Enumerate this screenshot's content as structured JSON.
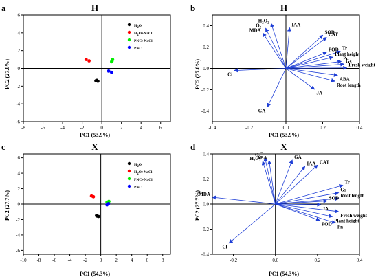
{
  "panels": [
    {
      "letter": "a",
      "title": "H",
      "xlabel": "PC1 (53.9%)",
      "ylabel": "PC2 (27.0%)"
    },
    {
      "letter": "b",
      "title": "H",
      "xlabel": "PC1 (53.9%)",
      "ylabel": "PC2 (27.0%)"
    },
    {
      "letter": "c",
      "title": "X",
      "xlabel": "PC1 (54.3%)",
      "ylabel": "PC2 (27.7%)"
    },
    {
      "letter": "d",
      "title": "X",
      "xlabel": "PC1 (54.3%)",
      "ylabel": "PC2 (27.7%)"
    }
  ],
  "chart_data": [
    {
      "type": "scatter",
      "panel": "a",
      "title": "H",
      "xlabel": "PC1 (53.9%)",
      "ylabel": "PC2 (27.0%)",
      "xlim": [
        -8,
        7
      ],
      "ylim": [
        -6,
        6
      ],
      "xticks": [
        -8,
        -6,
        -4,
        -2,
        0,
        2,
        4,
        6
      ],
      "yticks": [
        -6,
        -4,
        -2,
        0,
        2,
        4,
        6
      ],
      "grid": false,
      "legend_position": "top-right",
      "series": [
        {
          "name": "H2O",
          "color": "#000000",
          "points": [
            [
              -0.6,
              -1.4
            ],
            [
              -0.4,
              -1.45
            ],
            [
              -0.5,
              -1.35
            ]
          ]
        },
        {
          "name": "H2O+NaCl",
          "color": "#ff0000",
          "points": [
            [
              -1.6,
              1.0
            ],
            [
              -1.3,
              0.85
            ]
          ]
        },
        {
          "name": "PNC+NaCl",
          "color": "#00ee00",
          "points": [
            [
              1.05,
              0.85
            ],
            [
              1.1,
              1.0
            ],
            [
              1.0,
              0.75
            ]
          ]
        },
        {
          "name": "PNC",
          "color": "#0000ff",
          "points": [
            [
              0.7,
              -0.3
            ],
            [
              1.0,
              -0.45
            ]
          ]
        }
      ]
    },
    {
      "type": "biplot",
      "panel": "b",
      "title": "H",
      "xlabel": "PC1 (53.9%)",
      "ylabel": "PC2 (27.0%)",
      "xlim": [
        -0.4,
        0.4
      ],
      "ylim": [
        -0.5,
        0.5
      ],
      "xticks": [
        -0.4,
        -0.2,
        0.0,
        0.2,
        0.4
      ],
      "yticks": [
        -0.4,
        -0.2,
        0.0,
        0.2,
        0.4
      ],
      "grid": false,
      "vectors": [
        {
          "name": "Ci",
          "x": -0.28,
          "y": -0.02
        },
        {
          "name": "GA",
          "x": -0.1,
          "y": -0.36
        },
        {
          "name": "MDA",
          "x": -0.125,
          "y": 0.33
        },
        {
          "name": "O2⁻",
          "x": -0.11,
          "y": 0.375
        },
        {
          "name": "H2O2",
          "x": -0.08,
          "y": 0.42
        },
        {
          "name": "IAA",
          "x": 0.02,
          "y": 0.38
        },
        {
          "name": "SOD",
          "x": 0.2,
          "y": 0.31
        },
        {
          "name": "CAT",
          "x": 0.22,
          "y": 0.29
        },
        {
          "name": "POD",
          "x": 0.22,
          "y": 0.15
        },
        {
          "name": "Tr",
          "x": 0.295,
          "y": 0.16
        },
        {
          "name": "Plant height",
          "x": 0.255,
          "y": 0.105
        },
        {
          "name": "Pn",
          "x": 0.3,
          "y": 0.065
        },
        {
          "name": "Gs",
          "x": 0.315,
          "y": 0.04
        },
        {
          "name": "Fresh weight",
          "x": 0.33,
          "y": 0.005
        },
        {
          "name": "ABA",
          "x": 0.28,
          "y": -0.065
        },
        {
          "name": "Root length",
          "x": 0.265,
          "y": -0.12
        },
        {
          "name": "JA",
          "x": 0.155,
          "y": -0.195
        }
      ]
    },
    {
      "type": "scatter",
      "panel": "c",
      "title": "X",
      "xlabel": "PC1 (54.3%)",
      "ylabel": "PC2 (27.7%)",
      "xlim": [
        -10,
        9
      ],
      "ylim": [
        -6.5,
        6.5
      ],
      "xticks": [
        -10,
        -8,
        -6,
        -4,
        -2,
        0,
        2,
        4,
        6,
        8
      ],
      "yticks": [
        -6,
        -4,
        -2,
        0,
        2,
        4,
        6
      ],
      "grid": false,
      "legend_position": "top-right",
      "series": [
        {
          "name": "H2O",
          "color": "#000000",
          "points": [
            [
              -0.55,
              -1.5
            ],
            [
              -0.3,
              -1.6
            ],
            [
              -0.45,
              -1.55
            ]
          ]
        },
        {
          "name": "H2O+NaCl",
          "color": "#ff0000",
          "points": [
            [
              -1.2,
              1.05
            ],
            [
              -0.95,
              0.95
            ]
          ]
        },
        {
          "name": "PNC+NaCl",
          "color": "#00ee00",
          "points": [
            [
              0.8,
              0.25
            ],
            [
              1.05,
              0.35
            ],
            [
              0.95,
              0.15
            ]
          ]
        },
        {
          "name": "PNC",
          "color": "#0000ff",
          "points": [
            [
              0.8,
              -0.1
            ],
            [
              1.0,
              0.05
            ]
          ]
        }
      ]
    },
    {
      "type": "biplot",
      "panel": "d",
      "title": "X",
      "xlabel": "PC1 (54.3%)",
      "ylabel": "PC2 (27.7%)",
      "xlim": [
        -0.3,
        0.4
      ],
      "ylim": [
        -0.4,
        0.4
      ],
      "xticks": [
        -0.2,
        0.0,
        0.2,
        0.4
      ],
      "yticks": [
        -0.4,
        -0.2,
        0.0,
        0.2,
        0.4
      ],
      "grid": false,
      "vectors": [
        {
          "name": "Cl",
          "x": -0.22,
          "y": -0.31
        },
        {
          "name": "MDA",
          "x": -0.3,
          "y": 0.055
        },
        {
          "name": "H2O2",
          "x": -0.06,
          "y": 0.34
        },
        {
          "name": "O2⁻",
          "x": -0.05,
          "y": 0.37
        },
        {
          "name": "ABA",
          "x": -0.03,
          "y": 0.345
        },
        {
          "name": "GA",
          "x": 0.08,
          "y": 0.35
        },
        {
          "name": "IAA",
          "x": 0.14,
          "y": 0.3
        },
        {
          "name": "CAT",
          "x": 0.2,
          "y": 0.31
        },
        {
          "name": "Tr",
          "x": 0.32,
          "y": 0.15
        },
        {
          "name": "Gs",
          "x": 0.3,
          "y": 0.09
        },
        {
          "name": "Root length",
          "x": 0.3,
          "y": 0.045
        },
        {
          "name": "SOD",
          "x": 0.245,
          "y": 0.025
        },
        {
          "name": "JA",
          "x": 0.215,
          "y": -0.005
        },
        {
          "name": "Fresh weight",
          "x": 0.3,
          "y": -0.06
        },
        {
          "name": "Plant height",
          "x": 0.27,
          "y": -0.1
        },
        {
          "name": "POD",
          "x": 0.21,
          "y": -0.13
        },
        {
          "name": "Pn",
          "x": 0.285,
          "y": -0.15
        }
      ]
    }
  ]
}
